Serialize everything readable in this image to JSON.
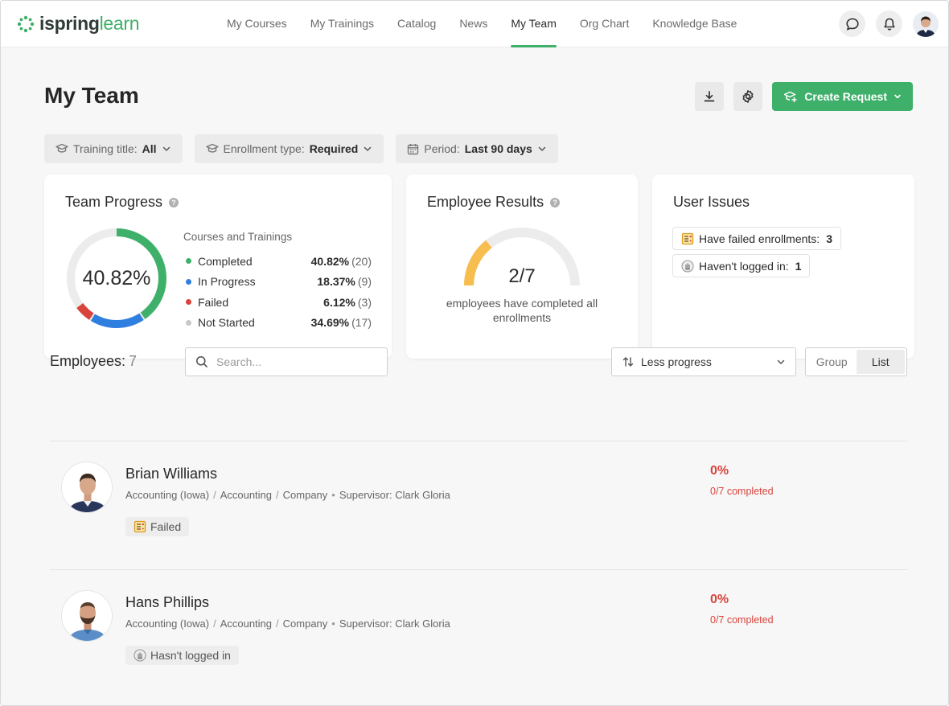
{
  "brand": {
    "name_part1": "ispring",
    "name_part2": "learn",
    "color": "#3fb06a"
  },
  "nav": {
    "items": [
      {
        "label": "My Courses",
        "active": false
      },
      {
        "label": "My Trainings",
        "active": false
      },
      {
        "label": "Catalog",
        "active": false
      },
      {
        "label": "News",
        "active": false
      },
      {
        "label": "My Team",
        "active": true
      },
      {
        "label": "Org Chart",
        "active": false
      },
      {
        "label": "Knowledge Base",
        "active": false
      }
    ],
    "icons": [
      "chat-icon",
      "bell-icon",
      "user-avatar"
    ]
  },
  "page": {
    "title": "My Team",
    "create_request_label": "Create Request",
    "action_icons": [
      "download-icon",
      "gear-icon"
    ]
  },
  "filters": [
    {
      "label": "Training title:",
      "value": "All",
      "icon": "graduation-cap-icon"
    },
    {
      "label": "Enrollment type:",
      "value": "Required",
      "icon": "graduation-cap-icon"
    },
    {
      "label": "Period:",
      "value": "Last 90 days",
      "icon": "calendar-icon"
    }
  ],
  "team_progress": {
    "title": "Team Progress",
    "center_value": "40.82%",
    "legend_title": "Courses and Trainings",
    "items": [
      {
        "label": "Completed",
        "percent": "40.82%",
        "count": "(20)",
        "fraction": 0.4082,
        "color": "#3fb06a"
      },
      {
        "label": "In Progress",
        "percent": "18.37%",
        "count": "(9)",
        "fraction": 0.1837,
        "color": "#2f7fe0"
      },
      {
        "label": "Failed",
        "percent": "6.12%",
        "count": "(3)",
        "fraction": 0.0612,
        "color": "#d8443b"
      },
      {
        "label": "Not Started",
        "percent": "34.69%",
        "count": "(17)",
        "fraction": 0.3469,
        "color": "#ececec"
      }
    ]
  },
  "employee_results": {
    "title": "Employee Results",
    "value": "2/7",
    "caption": "employees have completed all enrollments",
    "fraction": 0.2857,
    "color": "#f8bd4f"
  },
  "user_issues": {
    "title": "User Issues",
    "items": [
      {
        "label": "Have failed enrollments:",
        "count": "3",
        "icon": "failed-checklist-icon"
      },
      {
        "label": "Haven't logged in:",
        "count": "1",
        "icon": "hand-icon"
      }
    ]
  },
  "employees": {
    "label": "Employees:",
    "count": "7",
    "search_placeholder": "Search...",
    "sort_value": "Less progress",
    "view_options": [
      "Group",
      "List"
    ],
    "view_selected": "List",
    "rows": [
      {
        "name": "Brian Williams",
        "path": [
          "Accounting (Iowa)",
          "Accounting",
          "Company"
        ],
        "supervisor": "Supervisor: Clark Gloria",
        "tag": "Failed",
        "tag_icon": "failed-checklist-icon",
        "percent": "0%",
        "completed": "0/7 completed"
      },
      {
        "name": "Hans Phillips",
        "path": [
          "Accounting (Iowa)",
          "Accounting",
          "Company"
        ],
        "supervisor": "Supervisor: Clark Gloria",
        "tag": "Hasn't logged in",
        "tag_icon": "hand-icon",
        "percent": "0%",
        "completed": "0/7 completed"
      }
    ]
  }
}
